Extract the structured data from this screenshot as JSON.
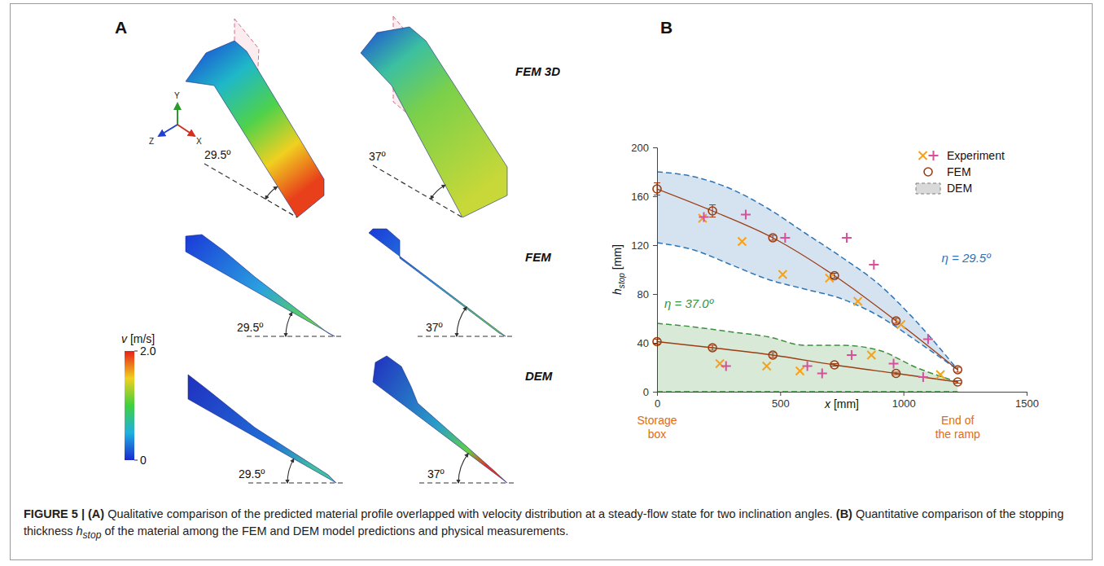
{
  "chart_data": [
    {
      "type": "line",
      "letter": "B",
      "x_label": [
        {
          "text": "x",
          "style": "italic"
        },
        {
          "text": " [mm]"
        }
      ],
      "y_label": [
        {
          "text": "h",
          "style": "italic"
        },
        {
          "text": "stop",
          "style": "subscript"
        },
        {
          "text": " [mm]"
        }
      ],
      "xlim": [
        0,
        1500
      ],
      "xticks": [
        0,
        500,
        1000,
        1500
      ],
      "ylim": [
        0,
        200
      ],
      "yticks": [
        0,
        40,
        80,
        120,
        160,
        200
      ],
      "legend": "upper right",
      "series": [
        {
          "name": "Experiment",
          "type": "scatter",
          "marker": "x",
          "color": "#f5a21a",
          "x": [
            185,
            345,
            510,
            700,
            815,
            990,
            255,
            445,
            580,
            870,
            1150
          ],
          "values": [
            142,
            123,
            96,
            93,
            74,
            55,
            23,
            21,
            17,
            30,
            14
          ]
        },
        {
          "name": "Experiment",
          "type": "scatter",
          "marker": "plus",
          "color": "#d6509a",
          "x": [
            190,
            360,
            520,
            770,
            880,
            1100,
            280,
            610,
            670,
            790,
            960,
            1080
          ],
          "values": [
            143,
            145,
            126,
            126,
            104,
            43,
            21,
            21,
            15,
            30,
            23,
            12
          ]
        },
        {
          "name": "FEM",
          "type": "line",
          "marker": "circle",
          "color": "#9c3d14",
          "x": [
            0,
            225,
            470,
            720,
            970,
            1220
          ],
          "values": [
            166,
            148,
            126,
            95,
            58,
            18
          ],
          "errors": [
            5,
            5,
            2,
            2,
            2,
            2
          ]
        },
        {
          "name": "FEM",
          "type": "line",
          "marker": "circle",
          "color": "#9c3d14",
          "x": [
            0,
            225,
            470,
            720,
            970,
            1220
          ],
          "values": [
            41,
            36,
            30,
            22,
            15,
            8
          ],
          "errors": [
            2,
            2,
            2,
            1,
            1,
            1
          ]
        },
        {
          "name": "DEM",
          "type": "area",
          "color": "#2e75b6",
          "line_style": "dashed",
          "x": [
            0,
            150,
            300,
            450,
            600,
            750,
            900,
            1050,
            1220
          ],
          "upper": [
            180,
            176,
            166,
            150,
            130,
            110,
            88,
            58,
            18
          ],
          "lower": [
            122,
            116,
            104,
            92,
            84,
            76,
            62,
            42,
            18
          ]
        },
        {
          "name": "DEM",
          "type": "area",
          "color": "#3d8f3d",
          "line_style": "dashed",
          "x": [
            0,
            150,
            300,
            450,
            600,
            750,
            900,
            1050,
            1220
          ],
          "upper": [
            56,
            53,
            49,
            45,
            38,
            38,
            34,
            20,
            8
          ],
          "lower": [
            0,
            0,
            0,
            0,
            0,
            0,
            0,
            0,
            0
          ]
        }
      ],
      "annotations": [
        {
          "text": "η = 29.5º",
          "color": "#2e75b6"
        },
        {
          "text": "η = 37.0º",
          "color": "#3d8f3d"
        }
      ],
      "x_notes": {
        "color": "#e46c0a",
        "texts": [
          "Storage box",
          "End of the ramp"
        ]
      }
    }
  ],
  "panel_a": {
    "letter": "A",
    "rows": [
      "FEM 3D",
      "FEM",
      "DEM"
    ],
    "angles": [
      "29.5º",
      "37º"
    ],
    "axes": [
      "X",
      "Y",
      "Z"
    ],
    "colorbar": {
      "label": [
        {
          "text": "v",
          "style": "italic"
        },
        {
          "text": " [m/s]"
        }
      ],
      "range": [
        0,
        2.0
      ],
      "ticks": [
        0,
        {
          "value": 2.0,
          "label": "2.0"
        }
      ]
    }
  },
  "caption": [
    {
      "text": "FIGURE 5 | ",
      "style": "bold"
    },
    {
      "text": "(A)",
      "style": "bold"
    },
    {
      "text": " Qualitative comparison of the predicted material profile overlapped with velocity distribution at a steady-flow state for two inclination angles. "
    },
    {
      "text": "(B)",
      "style": "bold"
    },
    {
      "text": " Quantitative comparison of the stopping thickness "
    },
    {
      "text": "h",
      "style": "italic"
    },
    {
      "text": "stop",
      "style": "subscript"
    },
    {
      "text": " of the material among the FEM and DEM model predictions and physical measurements."
    }
  ]
}
